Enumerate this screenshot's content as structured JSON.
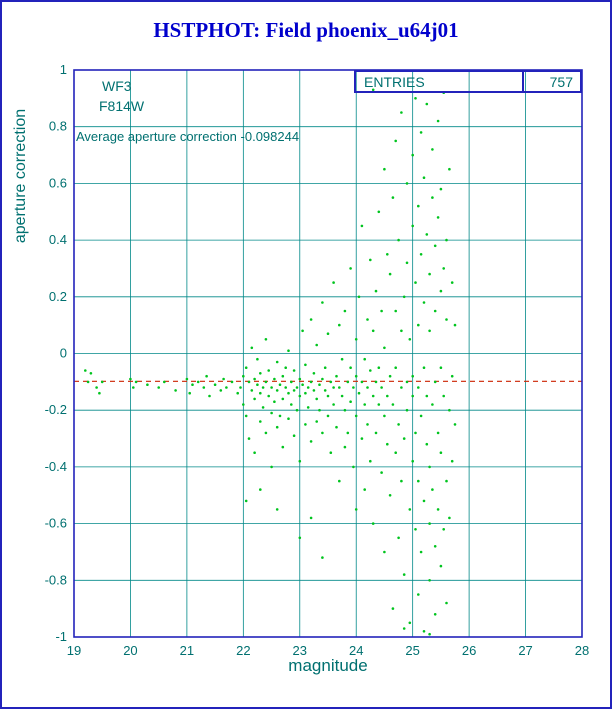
{
  "title": "HSTPHOT: Field phoenix_u64j01",
  "annotations": {
    "camera": "WF3",
    "filter": "F814W",
    "average_line": "Average aperture correction -0.098244",
    "entries_label": "ENTRIES",
    "entries_value": "757"
  },
  "colors": {
    "frame": "#2323bb",
    "grid": "#008888",
    "axis_text": "#007070",
    "title": "#0000cc",
    "points": "#00c41e",
    "reference_line": "#cc2200",
    "border": "#2323bb"
  },
  "chart_data": {
    "type": "scatter",
    "title": "HSTPHOT: Field phoenix_u64j01",
    "xlabel": "magnitude",
    "ylabel": "aperture correction",
    "xlim": [
      19,
      28
    ],
    "ylim": [
      -1,
      1
    ],
    "xticks": [
      19,
      20,
      21,
      22,
      23,
      24,
      25,
      26,
      27,
      28
    ],
    "yticks": [
      -1,
      -0.8,
      -0.6,
      -0.4,
      -0.2,
      0,
      0.2,
      0.4,
      0.6,
      0.8,
      1
    ],
    "grid": true,
    "entries": 757,
    "average_aperture_correction": -0.098244,
    "reference_line": {
      "y": -0.098244,
      "color": "#cc2200",
      "style": "dashed"
    },
    "series": [
      {
        "name": "aperture corrections",
        "color": "#00c41e",
        "points": [
          [
            19.2,
            -0.06
          ],
          [
            19.25,
            -0.1
          ],
          [
            19.3,
            -0.07
          ],
          [
            19.4,
            -0.12
          ],
          [
            19.45,
            -0.14
          ],
          [
            19.5,
            -0.1
          ],
          [
            20,
            -0.09
          ],
          [
            20.05,
            -0.12
          ],
          [
            20.1,
            -0.1
          ],
          [
            20.3,
            -0.11
          ],
          [
            20.5,
            -0.12
          ],
          [
            20.6,
            -0.1
          ],
          [
            20.8,
            -0.13
          ],
          [
            21,
            -0.09
          ],
          [
            21.05,
            -0.14
          ],
          [
            21.1,
            -0.11
          ],
          [
            21.2,
            -0.1
          ],
          [
            21.3,
            -0.12
          ],
          [
            21.35,
            -0.08
          ],
          [
            21.4,
            -0.15
          ],
          [
            21.5,
            -0.11
          ],
          [
            21.6,
            -0.13
          ],
          [
            21.65,
            -0.09
          ],
          [
            21.7,
            -0.12
          ],
          [
            21.8,
            -0.1
          ],
          [
            21.9,
            -0.14
          ],
          [
            21.95,
            -0.12
          ],
          [
            22,
            -0.08
          ],
          [
            22,
            -0.18
          ],
          [
            22.05,
            -0.05
          ],
          [
            22.05,
            -0.22
          ],
          [
            22.1,
            -0.1
          ],
          [
            22.1,
            -0.3
          ],
          [
            22.15,
            -0.13
          ],
          [
            22.15,
            0.02
          ],
          [
            22.2,
            -0.09
          ],
          [
            22.2,
            -0.16
          ],
          [
            22.2,
            -0.35
          ],
          [
            22.25,
            -0.11
          ],
          [
            22.25,
            -0.02
          ],
          [
            22.3,
            -0.14
          ],
          [
            22.3,
            -0.24
          ],
          [
            22.3,
            -0.07
          ],
          [
            22.35,
            -0.12
          ],
          [
            22.35,
            -0.19
          ],
          [
            22.4,
            -0.1
          ],
          [
            22.4,
            -0.28
          ],
          [
            22.4,
            0.05
          ],
          [
            22.45,
            -0.15
          ],
          [
            22.45,
            -0.06
          ],
          [
            22.5,
            -0.12
          ],
          [
            22.5,
            -0.21
          ],
          [
            22.5,
            -0.4
          ],
          [
            22.55,
            -0.09
          ],
          [
            22.55,
            -0.17
          ],
          [
            22.6,
            -0.13
          ],
          [
            22.6,
            -0.03
          ],
          [
            22.6,
            -0.26
          ],
          [
            22.65,
            -0.11
          ],
          [
            22.65,
            -0.22
          ],
          [
            22.7,
            -0.08
          ],
          [
            22.7,
            -0.16
          ],
          [
            22.7,
            -0.33
          ],
          [
            22.75,
            -0.12
          ],
          [
            22.75,
            -0.05
          ],
          [
            22.8,
            -0.14
          ],
          [
            22.8,
            -0.23
          ],
          [
            22.8,
            0.01
          ],
          [
            22.85,
            -0.1
          ],
          [
            22.85,
            -0.18
          ],
          [
            22.9,
            -0.13
          ],
          [
            22.9,
            -0.29
          ],
          [
            22.9,
            -0.06
          ],
          [
            22.95,
            -0.12
          ],
          [
            22.95,
            -0.2
          ],
          [
            23,
            -0.09
          ],
          [
            23,
            -0.15
          ],
          [
            23,
            -0.38
          ],
          [
            23.05,
            -0.11
          ],
          [
            23.05,
            0.08
          ],
          [
            23.1,
            -0.14
          ],
          [
            23.1,
            -0.25
          ],
          [
            23.1,
            -0.04
          ],
          [
            23.15,
            -0.12
          ],
          [
            23.15,
            -0.19
          ],
          [
            23.2,
            -0.1
          ],
          [
            23.2,
            -0.31
          ],
          [
            23.2,
            0.12
          ],
          [
            23.25,
            -0.13
          ],
          [
            23.25,
            -0.07
          ],
          [
            23.3,
            -0.16
          ],
          [
            23.3,
            -0.24
          ],
          [
            23.3,
            0.03
          ],
          [
            23.35,
            -0.11
          ],
          [
            23.35,
            -0.2
          ],
          [
            23.4,
            -0.09
          ],
          [
            23.4,
            -0.28
          ],
          [
            23.4,
            0.18
          ],
          [
            23.45,
            -0.13
          ],
          [
            23.45,
            -0.05
          ],
          [
            23.5,
            -0.15
          ],
          [
            23.5,
            -0.22
          ],
          [
            23.5,
            0.07
          ],
          [
            23.55,
            -0.1
          ],
          [
            23.55,
            -0.35
          ],
          [
            23.6,
            -0.12
          ],
          [
            23.6,
            -0.18
          ],
          [
            23.6,
            0.25
          ],
          [
            23.65,
            -0.08
          ],
          [
            23.65,
            -0.26
          ],
          [
            23.7,
            -0.12
          ],
          [
            23.7,
            0.1
          ],
          [
            23.7,
            -0.45
          ],
          [
            23.75,
            -0.15
          ],
          [
            23.75,
            -0.02
          ],
          [
            23.8,
            -0.2
          ],
          [
            23.8,
            0.15
          ],
          [
            23.8,
            -0.33
          ],
          [
            23.85,
            -0.1
          ],
          [
            23.85,
            -0.28
          ],
          [
            23.9,
            -0.05
          ],
          [
            23.9,
            -0.17
          ],
          [
            23.9,
            0.3
          ],
          [
            23.95,
            -0.12
          ],
          [
            23.95,
            -0.4
          ],
          [
            24,
            -0.08
          ],
          [
            24,
            -0.22
          ],
          [
            24,
            0.05
          ],
          [
            24,
            -0.55
          ],
          [
            24.05,
            -0.14
          ],
          [
            24.05,
            0.2
          ],
          [
            24.1,
            -0.1
          ],
          [
            24.1,
            -0.3
          ],
          [
            24.1,
            0.45
          ],
          [
            24.15,
            -0.18
          ],
          [
            24.15,
            -0.02
          ],
          [
            24.15,
            -0.48
          ],
          [
            24.2,
            -0.12
          ],
          [
            24.2,
            0.12
          ],
          [
            24.2,
            -0.25
          ],
          [
            24.25,
            -0.06
          ],
          [
            24.25,
            -0.38
          ],
          [
            24.25,
            0.33
          ],
          [
            24.3,
            -0.15
          ],
          [
            24.3,
            -0.6
          ],
          [
            24.3,
            0.08
          ],
          [
            24.3,
            0.93
          ],
          [
            24.35,
            -0.1
          ],
          [
            24.35,
            0.22
          ],
          [
            24.35,
            -0.28
          ],
          [
            24.4,
            -0.18
          ],
          [
            24.4,
            0.5
          ],
          [
            24.4,
            -0.05
          ],
          [
            24.45,
            -0.12
          ],
          [
            24.45,
            -0.42
          ],
          [
            24.45,
            0.15
          ],
          [
            24.5,
            -0.22
          ],
          [
            24.5,
            0.65
          ],
          [
            24.5,
            -0.7
          ],
          [
            24.5,
            0.02
          ],
          [
            24.55,
            -0.15
          ],
          [
            24.55,
            0.35
          ],
          [
            24.55,
            -0.32
          ],
          [
            24.6,
            -0.08
          ],
          [
            24.6,
            0.28
          ],
          [
            24.6,
            -0.5
          ],
          [
            24.65,
            -0.18
          ],
          [
            24.65,
            0.55
          ],
          [
            24.65,
            -0.9
          ],
          [
            24.7,
            -0.05
          ],
          [
            24.7,
            0.15
          ],
          [
            24.7,
            -0.35
          ],
          [
            24.7,
            0.75
          ],
          [
            24.75,
            -0.25
          ],
          [
            24.75,
            0.4
          ],
          [
            24.75,
            -0.65
          ],
          [
            24.8,
            -0.12
          ],
          [
            24.8,
            0.08
          ],
          [
            24.8,
            -0.45
          ],
          [
            24.8,
            0.85
          ],
          [
            24.85,
            -0.3
          ],
          [
            24.85,
            0.2
          ],
          [
            24.85,
            -0.78
          ],
          [
            24.85,
            -0.97
          ],
          [
            24.9,
            -0.1
          ],
          [
            24.9,
            0.6
          ],
          [
            24.9,
            -0.2
          ],
          [
            24.9,
            0.32
          ],
          [
            24.95,
            -0.55
          ],
          [
            24.95,
            0.05
          ],
          [
            24.95,
            -0.95
          ],
          [
            25,
            -0.15
          ],
          [
            25,
            0.45
          ],
          [
            25,
            -0.38
          ],
          [
            25,
            0.7
          ],
          [
            25,
            -0.08
          ],
          [
            25.05,
            0.25
          ],
          [
            25.05,
            -0.62
          ],
          [
            25.05,
            0.9
          ],
          [
            25.05,
            -0.28
          ],
          [
            25.1,
            -0.12
          ],
          [
            25.1,
            0.52
          ],
          [
            25.1,
            -0.85
          ],
          [
            25.1,
            0.1
          ],
          [
            25.1,
            -0.45
          ],
          [
            25.15,
            0.35
          ],
          [
            25.15,
            -0.22
          ],
          [
            25.15,
            0.78
          ],
          [
            25.15,
            -0.7
          ],
          [
            25.2,
            -0.05
          ],
          [
            25.2,
            0.18
          ],
          [
            25.2,
            -0.52
          ],
          [
            25.2,
            0.62
          ],
          [
            25.2,
            -0.98
          ],
          [
            25.25,
            -0.32
          ],
          [
            25.25,
            0.42
          ],
          [
            25.25,
            -0.15
          ],
          [
            25.25,
            0.88
          ],
          [
            25.3,
            -0.6
          ],
          [
            25.3,
            0.08
          ],
          [
            25.3,
            -0.4
          ],
          [
            25.3,
            0.28
          ],
          [
            25.3,
            -0.8
          ],
          [
            25.3,
            -0.99
          ],
          [
            25.35,
            0.55
          ],
          [
            25.35,
            -0.18
          ],
          [
            25.35,
            0.72
          ],
          [
            25.35,
            -0.48
          ],
          [
            25.4,
            -0.1
          ],
          [
            25.4,
            0.38
          ],
          [
            25.4,
            -0.68
          ],
          [
            25.4,
            0.15
          ],
          [
            25.4,
            -0.92
          ],
          [
            25.45,
            0.48
          ],
          [
            25.45,
            -0.28
          ],
          [
            25.45,
            0.82
          ],
          [
            25.45,
            -0.55
          ],
          [
            25.5,
            -0.05
          ],
          [
            25.5,
            0.22
          ],
          [
            25.5,
            -0.75
          ],
          [
            25.5,
            0.58
          ],
          [
            25.5,
            -0.35
          ],
          [
            25.55,
            -0.15
          ],
          [
            25.55,
            0.3
          ],
          [
            25.55,
            -0.62
          ],
          [
            25.55,
            0.92
          ],
          [
            25.6,
            -0.45
          ],
          [
            25.6,
            0.12
          ],
          [
            25.6,
            -0.88
          ],
          [
            25.6,
            0.4
          ],
          [
            25.65,
            -0.2
          ],
          [
            25.65,
            0.65
          ],
          [
            25.65,
            -0.58
          ],
          [
            25.7,
            -0.08
          ],
          [
            25.7,
            0.25
          ],
          [
            25.7,
            -0.38
          ],
          [
            25.75,
            0.1
          ],
          [
            25.75,
            -0.25
          ],
          [
            22.05,
            -0.52
          ],
          [
            22.3,
            -0.48
          ],
          [
            22.6,
            -0.55
          ],
          [
            23,
            -0.65
          ],
          [
            23.2,
            -0.58
          ],
          [
            23.4,
            -0.72
          ]
        ]
      }
    ]
  }
}
